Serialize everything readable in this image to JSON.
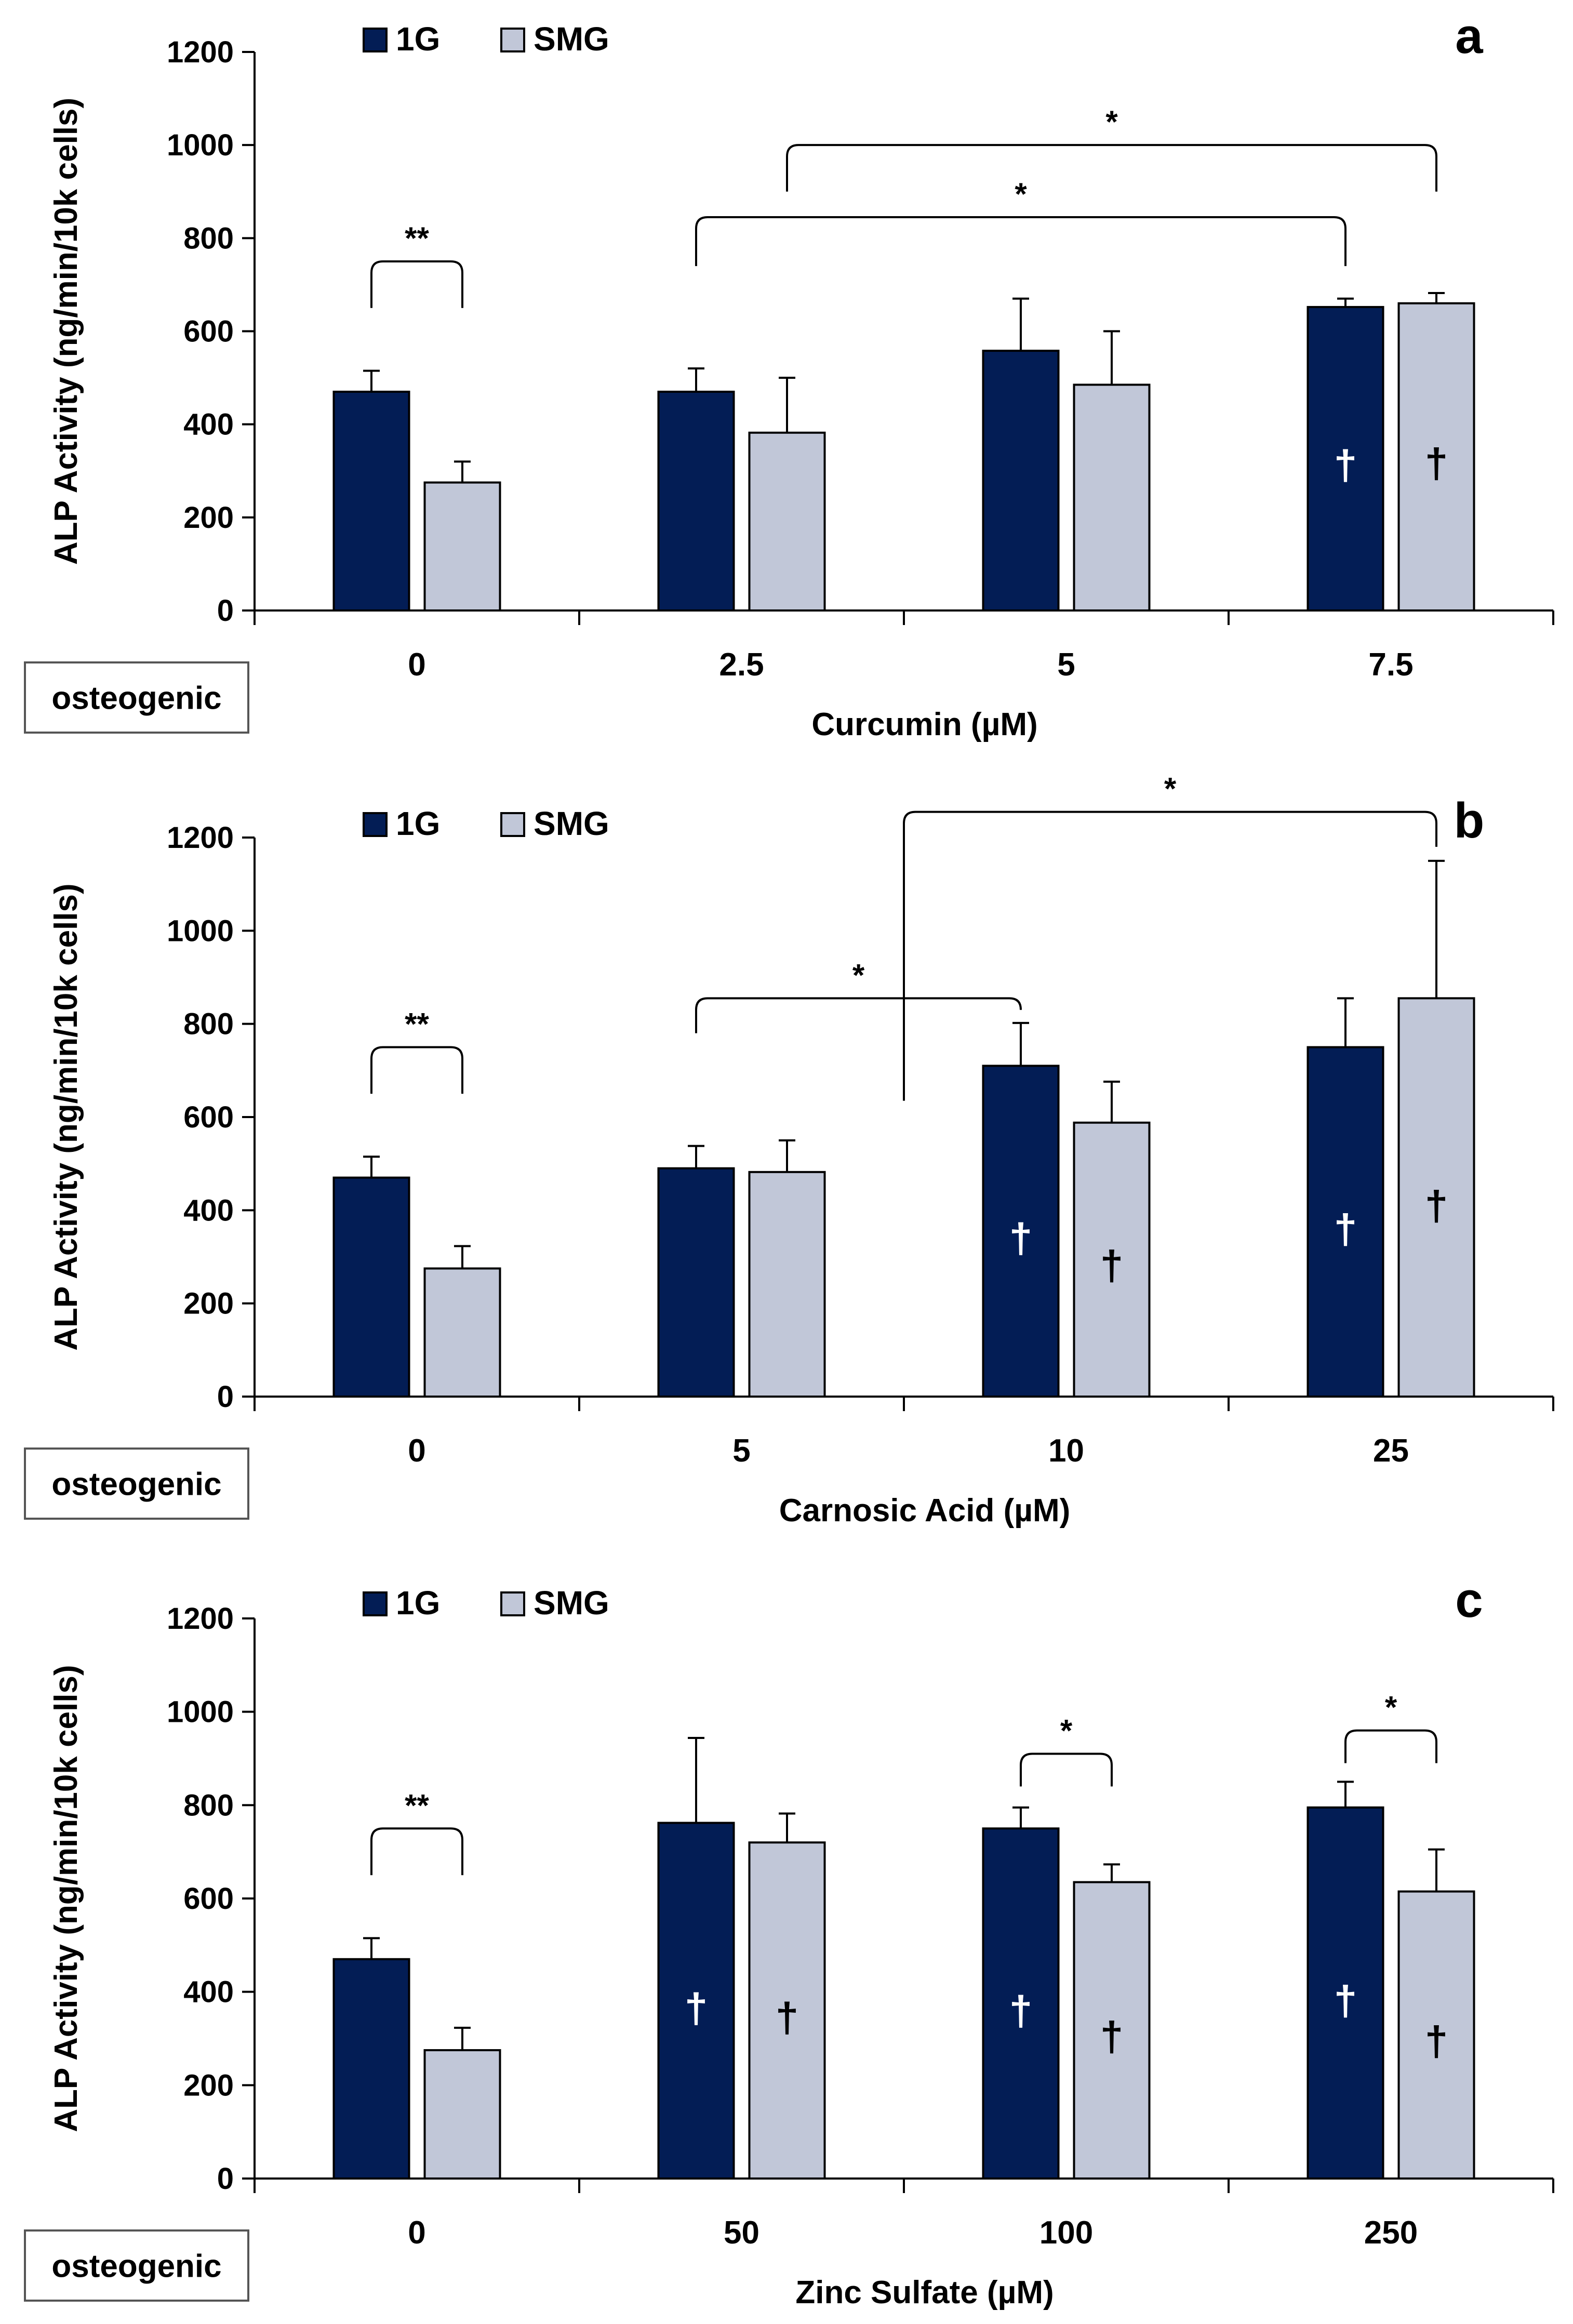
{
  "colors": {
    "series_1g": "#031d55",
    "series_smg": "#c1c7d8",
    "axis": "#000000",
    "dagger_on_dark": "#ffffff",
    "dagger_on_light": "#000000"
  },
  "osteogenic_label": "osteogenic",
  "chart_data": [
    {
      "type": "bar",
      "panel": "a",
      "title": "a",
      "xlabel": "Curcumin (µM)",
      "ylabel": "ALP Activity  (ng/min/10k cells)",
      "ylim": [
        0,
        1200
      ],
      "yticks": [
        0,
        200,
        400,
        600,
        800,
        1000,
        1200
      ],
      "yticklabels": [
        "0",
        "200",
        "400",
        "600",
        "800",
        "1000",
        "1200"
      ],
      "legend_position": "top-left",
      "grid": false,
      "categories": [
        "0",
        "2.5",
        "5",
        "7.5"
      ],
      "series": [
        {
          "name": "1G",
          "values": [
            470,
            470,
            558,
            652
          ],
          "errors": [
            45,
            50,
            112,
            18
          ],
          "dagger": [
            false,
            false,
            false,
            true
          ]
        },
        {
          "name": "SMG",
          "values": [
            275,
            382,
            485,
            660
          ],
          "errors": [
            45,
            118,
            115,
            22
          ],
          "dagger": [
            false,
            false,
            false,
            true
          ]
        }
      ],
      "significance": [
        {
          "label": "**",
          "from": {
            "series": 0,
            "category": 0
          },
          "to": {
            "series": 1,
            "category": 0
          },
          "y": 750,
          "drop_to": [
            650,
            650
          ]
        },
        {
          "label": "*",
          "from": {
            "series": 0,
            "category": 1
          },
          "to": {
            "series": 0,
            "category": 3
          },
          "y": 845,
          "drop_to": [
            740,
            740
          ]
        },
        {
          "label": "*",
          "from": {
            "series": 1,
            "category": 1
          },
          "to": {
            "series": 1,
            "category": 3
          },
          "y": 1000,
          "drop_to": [
            900,
            900
          ]
        }
      ],
      "dagger_symbol": "†"
    },
    {
      "type": "bar",
      "panel": "b",
      "title": "b",
      "xlabel": "Carnosic Acid (µM)",
      "ylabel": "ALP Activity  (ng/min/10k cells)",
      "ylim": [
        0,
        1200
      ],
      "yticks": [
        0,
        200,
        400,
        600,
        800,
        1000,
        1200
      ],
      "yticklabels": [
        "0",
        "200",
        "400",
        "600",
        "800",
        "1000",
        "1200"
      ],
      "legend_position": "top-left",
      "grid": false,
      "categories": [
        "0",
        "5",
        "10",
        "25"
      ],
      "series": [
        {
          "name": "1G",
          "values": [
            470,
            490,
            710,
            750
          ],
          "errors": [
            45,
            48,
            92,
            105
          ],
          "dagger": [
            false,
            false,
            true,
            true
          ]
        },
        {
          "name": "SMG",
          "values": [
            275,
            482,
            588,
            855
          ],
          "errors": [
            48,
            68,
            88,
            295
          ],
          "dagger": [
            false,
            false,
            true,
            true
          ]
        }
      ],
      "significance": [
        {
          "label": "**",
          "from": {
            "series": 0,
            "category": 0
          },
          "to": {
            "series": 1,
            "category": 0
          },
          "y": 750,
          "drop_to": [
            650,
            650
          ]
        },
        {
          "label": "*",
          "from": {
            "series": 0,
            "category": 1
          },
          "to": {
            "series": 0,
            "category": 2
          },
          "y": 855,
          "drop_to": [
            780,
            830
          ]
        },
        {
          "label": "*",
          "from": {
            "between": 1
          },
          "to": {
            "series": 1,
            "category": 3
          },
          "y": 1255,
          "drop_to": [
            635,
            1180
          ]
        }
      ],
      "dagger_symbol": "†"
    },
    {
      "type": "bar",
      "panel": "c",
      "title": "c",
      "xlabel": "Zinc Sulfate (µM)",
      "ylabel": "ALP Activity  (ng/min/10k cells)",
      "ylim": [
        0,
        1200
      ],
      "yticks": [
        0,
        200,
        400,
        600,
        800,
        1000,
        1200
      ],
      "yticklabels": [
        "0",
        "200",
        "400",
        "600",
        "800",
        "1000",
        "1200"
      ],
      "legend_position": "top-left",
      "grid": false,
      "categories": [
        "0",
        "50",
        "100",
        "250"
      ],
      "series": [
        {
          "name": "1G",
          "values": [
            470,
            762,
            750,
            795
          ],
          "errors": [
            45,
            182,
            45,
            55
          ],
          "dagger": [
            false,
            true,
            true,
            true
          ]
        },
        {
          "name": "SMG",
          "values": [
            275,
            720,
            635,
            615
          ],
          "errors": [
            48,
            62,
            38,
            90
          ],
          "dagger": [
            false,
            true,
            true,
            true
          ]
        }
      ],
      "significance": [
        {
          "label": "**",
          "from": {
            "series": 0,
            "category": 0
          },
          "to": {
            "series": 1,
            "category": 0
          },
          "y": 750,
          "drop_to": [
            650,
            650
          ]
        },
        {
          "label": "*",
          "from": {
            "series": 0,
            "category": 2
          },
          "to": {
            "series": 1,
            "category": 2
          },
          "y": 910,
          "drop_to": [
            840,
            840
          ]
        },
        {
          "label": "*",
          "from": {
            "series": 0,
            "category": 3
          },
          "to": {
            "series": 1,
            "category": 3
          },
          "y": 960,
          "drop_to": [
            890,
            890
          ]
        }
      ],
      "dagger_symbol": "†"
    }
  ]
}
